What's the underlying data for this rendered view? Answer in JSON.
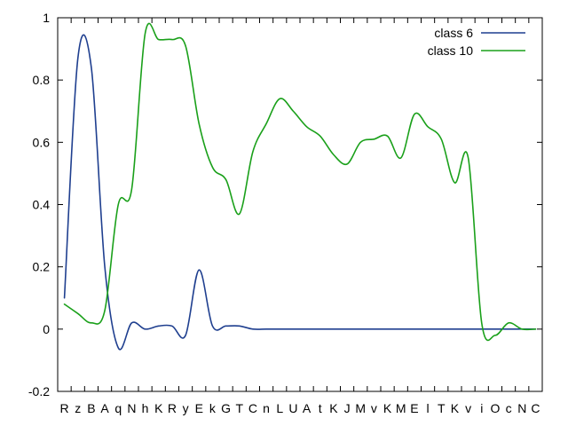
{
  "chart_data": {
    "type": "line",
    "title": "",
    "xlabel": "",
    "ylabel": "",
    "ylim": [
      -0.2,
      1
    ],
    "y_ticks": [
      "-0.2",
      "0",
      "0.2",
      "0.4",
      "0.6",
      "0.8",
      "1"
    ],
    "y_tick_values": [
      -0.2,
      0,
      0.2,
      0.4,
      0.6,
      0.8,
      1
    ],
    "grid": false,
    "legend": "top-right",
    "categories": [
      "R",
      "z",
      "B",
      "A",
      "q",
      "N",
      "h",
      "K",
      "R",
      "y",
      "E",
      "k",
      "G",
      "T",
      "C",
      "n",
      "L",
      "U",
      "A",
      "t",
      "K",
      "J",
      "M",
      "v",
      "K",
      "M",
      "E",
      "l",
      "T",
      "K",
      "v",
      "i",
      "O",
      "c",
      "N",
      "C"
    ],
    "series": [
      {
        "name": "class 6",
        "color": "#1f3f8f",
        "values": [
          0.1,
          0.87,
          0.84,
          0.2,
          -0.06,
          0.02,
          0.0,
          0.01,
          0.01,
          -0.02,
          0.19,
          0.01,
          0.01,
          0.01,
          0.0,
          0.0,
          0.0,
          0.0,
          0.0,
          0.0,
          0.0,
          0.0,
          0.0,
          0.0,
          0.0,
          0.0,
          0.0,
          0.0,
          0.0,
          0.0,
          0.0,
          0.0,
          0.0,
          0.0,
          0.0,
          0.0
        ]
      },
      {
        "name": "class 10",
        "color": "#1aa01a",
        "values": [
          0.08,
          0.05,
          0.02,
          0.06,
          0.4,
          0.45,
          0.95,
          0.93,
          0.93,
          0.91,
          0.66,
          0.52,
          0.48,
          0.37,
          0.57,
          0.66,
          0.74,
          0.7,
          0.65,
          0.62,
          0.56,
          0.53,
          0.6,
          0.61,
          0.62,
          0.55,
          0.69,
          0.65,
          0.61,
          0.47,
          0.55,
          0.02,
          -0.02,
          0.02,
          0.0,
          0.0
        ]
      }
    ]
  }
}
